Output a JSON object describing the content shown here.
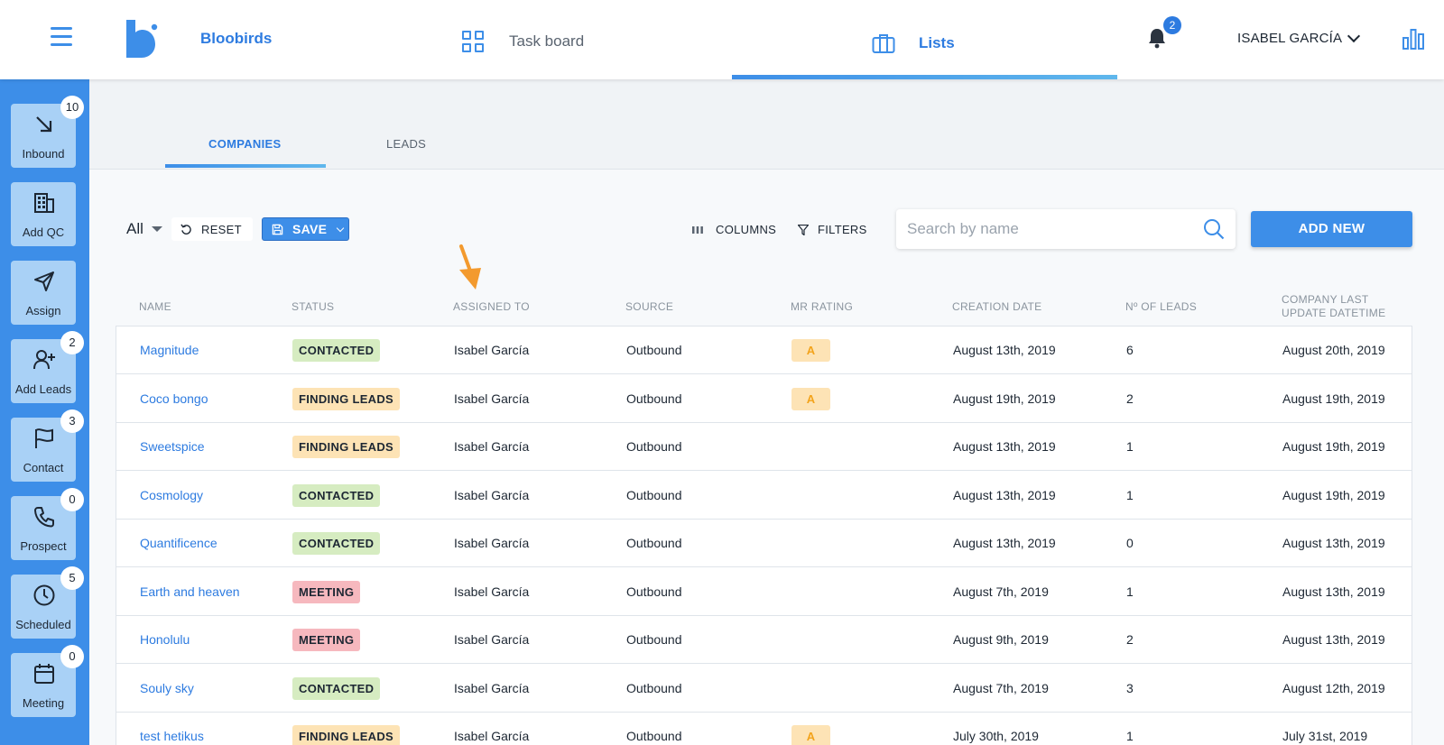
{
  "topbar": {
    "brand": "Bloobirds",
    "task_board_label": "Task board",
    "lists_label": "Lists",
    "notifications_count": "2",
    "user_name": "ISABEL GARCÍA"
  },
  "sidebar": {
    "items": [
      {
        "label": "Inbound",
        "count": "10",
        "icon": "arrow-down-right-icon"
      },
      {
        "label": "Add QC",
        "count": "",
        "icon": "building-icon"
      },
      {
        "label": "Assign",
        "count": "",
        "icon": "send-icon"
      },
      {
        "label": "Add Leads",
        "count": "2",
        "icon": "add-user-icon"
      },
      {
        "label": "Contact",
        "count": "3",
        "icon": "flag-icon"
      },
      {
        "label": "Prospect",
        "count": "0",
        "icon": "phone-icon"
      },
      {
        "label": "Scheduled",
        "count": "5",
        "icon": "clock-icon"
      },
      {
        "label": "Meeting",
        "count": "0",
        "icon": "calendar-icon"
      }
    ]
  },
  "tabs": {
    "companies": "COMPANIES",
    "leads": "LEADS"
  },
  "toolbar": {
    "view_select": "All",
    "reset_label": "RESET",
    "save_label": "SAVE",
    "columns_label": "COLUMNS",
    "filters_label": "FILTERS",
    "search_placeholder": "Search by name",
    "add_new_label": "ADD NEW"
  },
  "table": {
    "headers": {
      "name": "NAME",
      "status": "STATUS",
      "assigned": "ASSIGNED TO",
      "source": "SOURCE",
      "rating": "MR RATING",
      "created": "CREATION DATE",
      "leads": "Nº OF LEADS",
      "updated_line1": "COMPANY LAST",
      "updated_line2": "UPDATE DATETIME"
    },
    "rows": [
      {
        "name": "Magnitude",
        "status": "CONTACTED",
        "assigned": "Isabel García",
        "source": "Outbound",
        "rating": "A",
        "created": "August 13th, 2019",
        "leads": "6",
        "updated": "August 20th, 2019"
      },
      {
        "name": "Coco bongo",
        "status": "FINDING LEADS",
        "assigned": "Isabel García",
        "source": "Outbound",
        "rating": "A",
        "created": "August 19th, 2019",
        "leads": "2",
        "updated": "August 19th, 2019"
      },
      {
        "name": "Sweetspice",
        "status": "FINDING LEADS",
        "assigned": "Isabel García",
        "source": "Outbound",
        "rating": "",
        "created": "August 13th, 2019",
        "leads": "1",
        "updated": "August 19th, 2019"
      },
      {
        "name": "Cosmology",
        "status": "CONTACTED",
        "assigned": "Isabel García",
        "source": "Outbound",
        "rating": "",
        "created": "August 13th, 2019",
        "leads": "1",
        "updated": "August 19th, 2019"
      },
      {
        "name": "Quantificence",
        "status": "CONTACTED",
        "assigned": "Isabel García",
        "source": "Outbound",
        "rating": "",
        "created": "August 13th, 2019",
        "leads": "0",
        "updated": "August 13th, 2019"
      },
      {
        "name": "Earth and heaven",
        "status": "MEETING",
        "assigned": "Isabel García",
        "source": "Outbound",
        "rating": "",
        "created": "August 7th, 2019",
        "leads": "1",
        "updated": "August 13th, 2019"
      },
      {
        "name": "Honolulu",
        "status": "MEETING",
        "assigned": "Isabel García",
        "source": "Outbound",
        "rating": "",
        "created": "August 9th, 2019",
        "leads": "2",
        "updated": "August 13th, 2019"
      },
      {
        "name": "Souly sky",
        "status": "CONTACTED",
        "assigned": "Isabel García",
        "source": "Outbound",
        "rating": "",
        "created": "August 7th, 2019",
        "leads": "3",
        "updated": "August 12th, 2019"
      },
      {
        "name": "test hetikus",
        "status": "FINDING LEADS",
        "assigned": "Isabel García",
        "source": "Outbound",
        "rating": "A",
        "created": "July 30th, 2019",
        "leads": "1",
        "updated": "July 31st, 2019"
      }
    ]
  },
  "colors": {
    "accent": "#3d8ee8",
    "contacted": "#d6ecc1",
    "finding_leads": "#fde3b5",
    "meeting": "#f6b8be",
    "annotation_arrow": "#f39a2e"
  }
}
